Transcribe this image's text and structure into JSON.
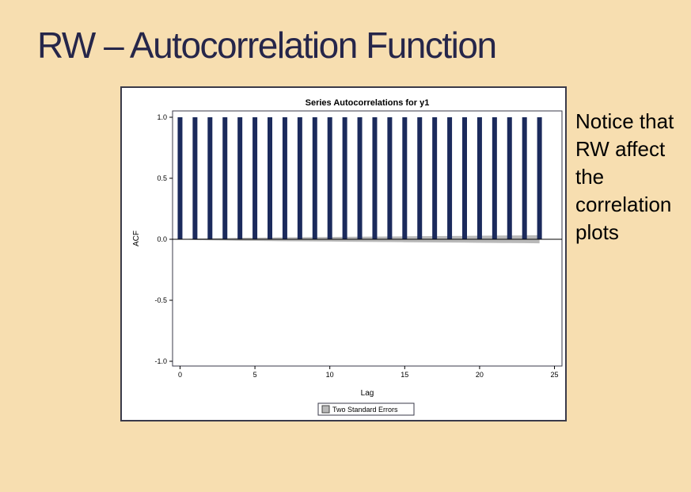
{
  "slide": {
    "title": "RW – Autocorrelation Function",
    "note": "Notice that\nRW affect\nthe\ncorrelation\nplots"
  },
  "chart_data": {
    "type": "bar",
    "title": "Series Autocorrelations for y1",
    "xlabel": "Lag",
    "ylabel": "ACF",
    "xlim": [
      -0.5,
      25.5
    ],
    "ylim": [
      -1.0,
      1.0
    ],
    "x_ticks": [
      0,
      5,
      10,
      15,
      20,
      25
    ],
    "y_ticks": [
      -1.0,
      -0.5,
      0.0,
      0.5,
      1.0
    ],
    "y_tick_labels": [
      "-1.0",
      "-0.5",
      "0.0",
      "0.5",
      "1.0"
    ],
    "lags": [
      0,
      1,
      2,
      3,
      4,
      5,
      6,
      7,
      8,
      9,
      10,
      11,
      12,
      13,
      14,
      15,
      16,
      17,
      18,
      19,
      20,
      21,
      22,
      23,
      24
    ],
    "acf": [
      1.0,
      1.0,
      1.0,
      1.0,
      1.0,
      1.0,
      1.0,
      1.0,
      1.0,
      1.0,
      1.0,
      1.0,
      1.0,
      1.0,
      1.0,
      1.0,
      1.0,
      1.0,
      1.0,
      1.0,
      1.0,
      1.0,
      1.0,
      1.0,
      1.0
    ],
    "two_std_err": [
      0.0,
      0.006,
      0.008,
      0.01,
      0.012,
      0.013,
      0.015,
      0.016,
      0.017,
      0.018,
      0.019,
      0.02,
      0.021,
      0.022,
      0.023,
      0.024,
      0.025,
      0.026,
      0.027,
      0.028,
      0.029,
      0.03,
      0.031,
      0.032,
      0.033
    ],
    "legend": {
      "position": "bottom",
      "label": "Two Standard Errors"
    },
    "colors": {
      "bar": "#1b2a5c",
      "band": "#b9b9b9",
      "frame": "#3a3a4a"
    },
    "grid": false
  }
}
